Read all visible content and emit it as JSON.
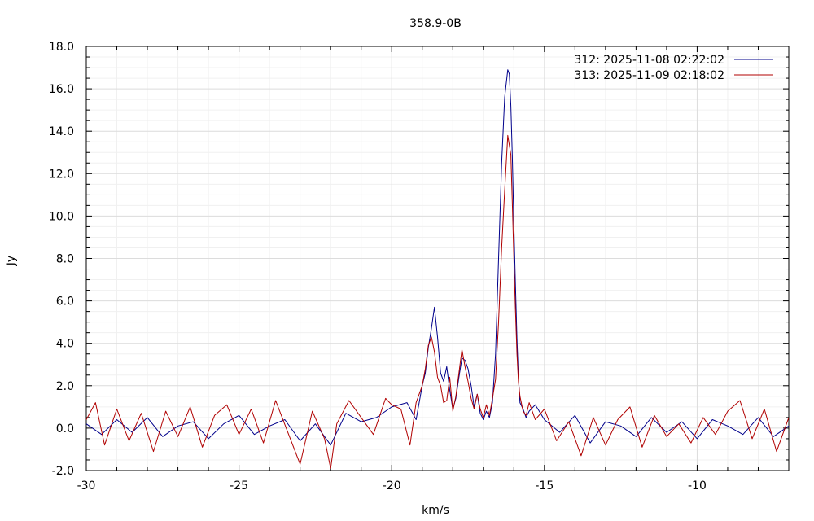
{
  "chart_data": {
    "type": "line",
    "title": "358.9-0B",
    "xlabel": "km/s",
    "ylabel": "Jy",
    "xlim": [
      -30,
      -7
    ],
    "ylim": [
      -2,
      18
    ],
    "x_ticks": [
      -30,
      -25,
      -20,
      -15,
      -10
    ],
    "x_tick_labels": [
      "-30",
      "-25",
      "-20",
      "-15",
      "-10"
    ],
    "y_ticks": [
      -2,
      0,
      2,
      4,
      6,
      8,
      10,
      12,
      14,
      16,
      18
    ],
    "y_tick_labels": [
      "-2.0",
      "0.0",
      "2.0",
      "4.0",
      "6.0",
      "8.0",
      "10.0",
      "12.0",
      "14.0",
      "16.0",
      "18.0"
    ],
    "grid": true,
    "legend_position": "top-right",
    "series": [
      {
        "name": "312:   2025-11-08 02:22:02",
        "color": "#00008b",
        "x": [
          -30.0,
          -29.5,
          -29.0,
          -28.5,
          -28.0,
          -27.5,
          -27.0,
          -26.5,
          -26.0,
          -25.5,
          -25.0,
          -24.5,
          -24.0,
          -23.5,
          -23.0,
          -22.5,
          -22.0,
          -21.5,
          -21.0,
          -20.5,
          -20.0,
          -19.5,
          -19.2,
          -19.0,
          -18.9,
          -18.8,
          -18.7,
          -18.6,
          -18.5,
          -18.4,
          -18.3,
          -18.2,
          -18.1,
          -18.0,
          -17.9,
          -17.8,
          -17.7,
          -17.6,
          -17.5,
          -17.4,
          -17.3,
          -17.2,
          -17.1,
          -17.0,
          -16.9,
          -16.8,
          -16.7,
          -16.6,
          -16.5,
          -16.4,
          -16.3,
          -16.2,
          -16.15,
          -16.1,
          -16.05,
          -16.0,
          -15.95,
          -15.9,
          -15.85,
          -15.8,
          -15.7,
          -15.6,
          -15.5,
          -15.3,
          -15.0,
          -14.5,
          -14.0,
          -13.5,
          -13.0,
          -12.5,
          -12.0,
          -11.5,
          -11.0,
          -10.5,
          -10.0,
          -9.5,
          -9.0,
          -8.5,
          -8.0,
          -7.5,
          -7.0
        ],
        "y": [
          0.2,
          -0.3,
          0.4,
          -0.2,
          0.5,
          -0.4,
          0.1,
          0.3,
          -0.5,
          0.2,
          0.6,
          -0.3,
          0.1,
          0.4,
          -0.6,
          0.2,
          -0.8,
          0.7,
          0.3,
          0.5,
          1.0,
          1.2,
          0.4,
          2.0,
          2.6,
          3.8,
          4.7,
          5.7,
          4.3,
          2.6,
          2.2,
          2.9,
          1.8,
          0.9,
          1.4,
          2.4,
          3.3,
          3.2,
          2.8,
          2.0,
          1.0,
          1.6,
          0.7,
          0.4,
          0.8,
          0.5,
          1.2,
          3.5,
          8.0,
          12.5,
          15.6,
          16.9,
          16.7,
          15.2,
          12.8,
          9.6,
          6.8,
          4.2,
          2.4,
          1.2,
          0.9,
          0.5,
          0.8,
          1.1,
          0.4,
          -0.2,
          0.6,
          -0.7,
          0.3,
          0.1,
          -0.4,
          0.5,
          -0.2,
          0.3,
          -0.5,
          0.4,
          0.1,
          -0.3,
          0.5,
          -0.4,
          0.1
        ]
      },
      {
        "name": "313:   2025-11-09 02:18:02",
        "color": "#b00000",
        "x": [
          -30.0,
          -29.7,
          -29.4,
          -29.0,
          -28.6,
          -28.2,
          -27.8,
          -27.4,
          -27.0,
          -26.6,
          -26.2,
          -25.8,
          -25.4,
          -25.0,
          -24.6,
          -24.2,
          -23.8,
          -23.4,
          -23.0,
          -22.6,
          -22.2,
          -22.0,
          -21.8,
          -21.4,
          -21.0,
          -20.6,
          -20.2,
          -20.0,
          -19.7,
          -19.4,
          -19.2,
          -19.0,
          -18.9,
          -18.8,
          -18.7,
          -18.6,
          -18.5,
          -18.4,
          -18.3,
          -18.2,
          -18.1,
          -18.0,
          -17.9,
          -17.8,
          -17.7,
          -17.6,
          -17.5,
          -17.4,
          -17.3,
          -17.2,
          -17.1,
          -17.0,
          -16.9,
          -16.8,
          -16.7,
          -16.6,
          -16.5,
          -16.4,
          -16.3,
          -16.2,
          -16.1,
          -16.05,
          -16.0,
          -15.95,
          -15.9,
          -15.85,
          -15.8,
          -15.7,
          -15.6,
          -15.5,
          -15.3,
          -15.0,
          -14.6,
          -14.2,
          -13.8,
          -13.4,
          -13.0,
          -12.6,
          -12.2,
          -11.8,
          -11.4,
          -11.0,
          -10.6,
          -10.2,
          -9.8,
          -9.4,
          -9.0,
          -8.6,
          -8.2,
          -7.8,
          -7.4,
          -7.0
        ],
        "y": [
          0.4,
          1.2,
          -0.8,
          0.9,
          -0.6,
          0.7,
          -1.1,
          0.8,
          -0.4,
          1.0,
          -0.9,
          0.6,
          1.1,
          -0.3,
          0.9,
          -0.7,
          1.3,
          -0.2,
          -1.7,
          0.8,
          -0.5,
          -1.9,
          0.2,
          1.3,
          0.5,
          -0.3,
          1.4,
          1.1,
          0.9,
          -0.8,
          1.2,
          2.0,
          2.8,
          3.9,
          4.3,
          3.6,
          2.4,
          2.0,
          1.2,
          1.3,
          2.4,
          0.8,
          1.5,
          2.6,
          3.7,
          2.9,
          2.2,
          1.4,
          0.9,
          1.6,
          0.9,
          0.5,
          1.1,
          0.6,
          1.4,
          2.3,
          5.0,
          8.5,
          11.2,
          13.8,
          12.9,
          10.6,
          8.0,
          5.6,
          3.5,
          2.2,
          1.5,
          0.8,
          0.6,
          1.2,
          0.4,
          0.9,
          -0.6,
          0.3,
          -1.3,
          0.5,
          -0.8,
          0.4,
          1.0,
          -0.9,
          0.6,
          -0.4,
          0.2,
          -0.7,
          0.5,
          -0.3,
          0.8,
          1.3,
          -0.5,
          0.9,
          -1.1,
          0.5
        ]
      }
    ]
  }
}
